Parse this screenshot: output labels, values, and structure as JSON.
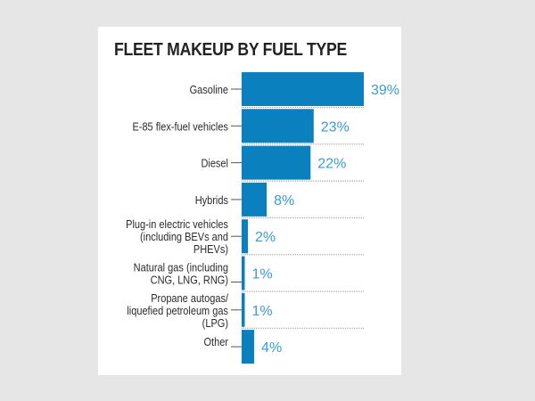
{
  "chart_data": {
    "type": "bar",
    "orientation": "horizontal",
    "title": "FLEET MAKEUP BY FUEL TYPE",
    "xlabel": "",
    "ylabel": "",
    "categories": [
      [
        "Gasoline"
      ],
      [
        "E-85 flex-fuel vehicles"
      ],
      [
        "Diesel"
      ],
      [
        "Hybrids"
      ],
      [
        "Plug-in electric vehicles",
        "(including BEVs and",
        "PHEVs)"
      ],
      [
        "Natural gas (including",
        "CNG, LNG, RNG)"
      ],
      [
        "Propane autogas/",
        "liquefied petroleum gas",
        "(LPG)"
      ],
      [
        "Other"
      ]
    ],
    "values": [
      39,
      23,
      22,
      8,
      2,
      1,
      1,
      4
    ],
    "value_labels": [
      "39%",
      "23%",
      "22%",
      "8%",
      "2%",
      "1%",
      "1%",
      "4%"
    ],
    "unit": "%",
    "xlim": [
      0,
      39
    ],
    "grid": false,
    "legend": "none",
    "colors": {
      "bar": "#0a80bf",
      "value_label": "#3c9ad3",
      "category_label": "#2b2b2b",
      "separator": "#9a9a9a",
      "card": "#ffffff",
      "background": "#e6e6e6"
    }
  }
}
